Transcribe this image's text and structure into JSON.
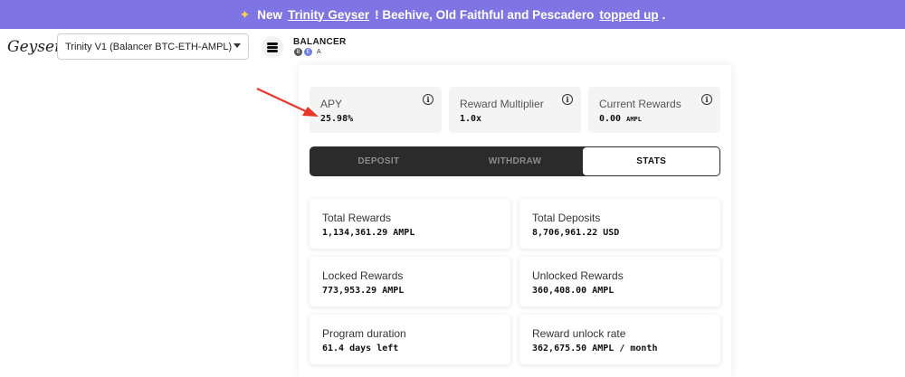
{
  "banner": {
    "emoji": "✦",
    "prefix": "New",
    "link": "Trinity Geyser",
    "middle": "! Beehive, Old Faithful and Pescadero",
    "link2": "topped up",
    "suffix": "."
  },
  "header": {
    "logo": "Geyser",
    "selected_geyser": "Trinity V1 (Balancer BTC-ETH-AMPL)"
  },
  "pool": {
    "name": "BALANCER",
    "token1": "B",
    "token2": "E",
    "token3": "A"
  },
  "stats": [
    {
      "label": "APY",
      "value": "25.98%",
      "unit": ""
    },
    {
      "label": "Reward Multiplier",
      "value": "1.0x",
      "unit": ""
    },
    {
      "label": "Current Rewards",
      "value": "0.00",
      "unit": "AMPL"
    }
  ],
  "info_glyph": "i",
  "tabs": [
    "DEPOSIT",
    "WITHDRAW",
    "STATS"
  ],
  "active_tab": "STATS",
  "cards": [
    {
      "label": "Total Rewards",
      "value": "1,134,361.29 AMPL"
    },
    {
      "label": "Total Deposits",
      "value": "8,706,961.22 USD"
    },
    {
      "label": "Locked Rewards",
      "value": "773,953.29 AMPL"
    },
    {
      "label": "Unlocked Rewards",
      "value": "360,408.00 AMPL"
    },
    {
      "label": "Program duration",
      "value": "61.4 days left"
    },
    {
      "label": "Reward unlock rate",
      "value": "362,675.50 AMPL / month"
    }
  ],
  "colors": {
    "banner": "#7f74e3",
    "arrow": "#e8372c"
  }
}
